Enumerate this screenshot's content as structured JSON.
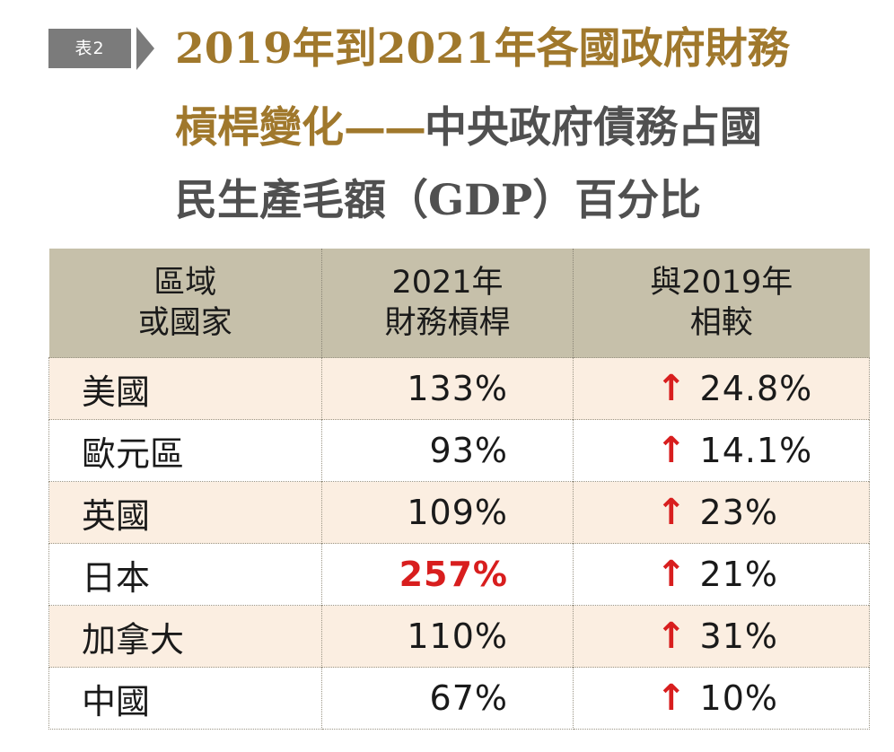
{
  "badge": "表2",
  "title": {
    "line1": "2019年到2021年各國政府財務",
    "line2_gold": "槓桿變化",
    "line2_dash": "——",
    "line2_grey": "中央政府債務占國",
    "line3": "民生產毛額（GDP）百分比"
  },
  "table": {
    "headers": [
      {
        "line1": "區域",
        "line2": "或國家"
      },
      {
        "line1": "2021年",
        "line2": "財務槓桿"
      },
      {
        "line1": "與2019年",
        "line2": "相較"
      }
    ],
    "arrow_icon": "↑",
    "rows": [
      {
        "region": "美國",
        "leverage": "133%",
        "change": "24.8%"
      },
      {
        "region": "歐元區",
        "leverage": "93%",
        "change": "14.1%"
      },
      {
        "region": "英國",
        "leverage": "109%",
        "change": "23%"
      },
      {
        "region": "日本",
        "leverage": "257%",
        "change": "21%"
      },
      {
        "region": "加拿大",
        "leverage": "110%",
        "change": "31%"
      },
      {
        "region": "中國",
        "leverage": "67%",
        "change": "10%"
      }
    ]
  },
  "colors": {
    "title_gold": "#a0782c",
    "title_grey": "#505050",
    "header_bg": "#c6c0aa",
    "row_stripe": "#fbeee1",
    "accent_red": "#d81e1e"
  }
}
